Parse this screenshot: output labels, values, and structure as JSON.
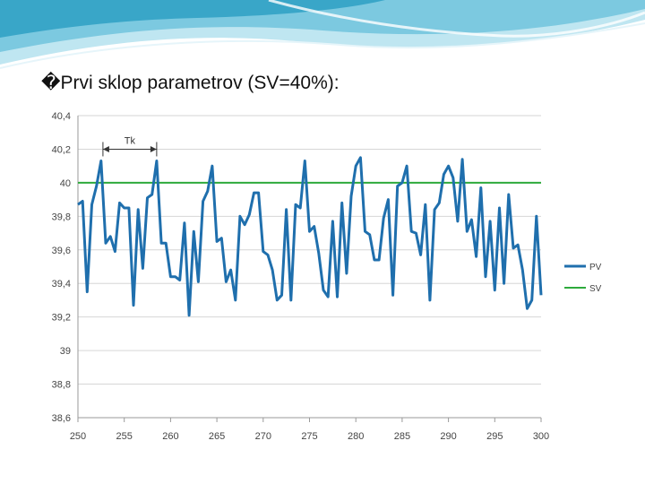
{
  "slide": {
    "title": "�Prvi sklop parametrov (SV=40%):"
  },
  "colors": {
    "pv": "#1f6fad",
    "sv": "#2eaa3c",
    "header_dark": "#3aa7c9",
    "header_light": "#a9dceb"
  },
  "chart_data": {
    "type": "line",
    "title": "",
    "xlabel": "",
    "ylabel": "",
    "xlim": [
      250,
      300
    ],
    "ylim": [
      38.6,
      40.4
    ],
    "x_ticks": [
      "250",
      "255",
      "260",
      "265",
      "270",
      "275",
      "280",
      "285",
      "290",
      "295",
      "300"
    ],
    "y_ticks": [
      "40,4",
      "40,2",
      "40",
      "39,8",
      "39,6",
      "39,4",
      "39,2",
      "39",
      "38,8",
      "38,6"
    ],
    "grid": true,
    "legend_position": "right",
    "annotation": {
      "label": "Tk",
      "from_x": 252.7,
      "to_x": 258.5,
      "y": 40.2
    },
    "series": [
      {
        "name": "PV",
        "color": "#1f6fad",
        "x": [
          250,
          250.5,
          251,
          251.5,
          252,
          252.5,
          253,
          253.5,
          254,
          254.5,
          255,
          255.5,
          256,
          256.5,
          257,
          257.5,
          258,
          258.5,
          259,
          259.5,
          260,
          260.5,
          261,
          261.5,
          262,
          262.5,
          263,
          263.5,
          264,
          264.5,
          265,
          265.5,
          266,
          266.5,
          267,
          267.5,
          268,
          268.5,
          269,
          269.5,
          270,
          270.5,
          271,
          271.5,
          272,
          272.5,
          273,
          273.5,
          274,
          274.5,
          275,
          275.5,
          276,
          276.5,
          277,
          277.5,
          278,
          278.5,
          279,
          279.5,
          280,
          280.5,
          281,
          281.5,
          282,
          282.5,
          283,
          283.5,
          284,
          284.5,
          285,
          285.5,
          286,
          286.5,
          287,
          287.5,
          288,
          288.5,
          289,
          289.5,
          290,
          290.5,
          291,
          291.5,
          292,
          292.5,
          293,
          293.5,
          294,
          294.5,
          295,
          295.5,
          296,
          296.5,
          297,
          297.5,
          298,
          298.5,
          299,
          299.5,
          300
        ],
        "y": [
          39.87,
          39.89,
          39.35,
          39.87,
          39.98,
          40.13,
          39.64,
          39.68,
          39.59,
          39.88,
          39.85,
          39.85,
          39.27,
          39.84,
          39.49,
          39.91,
          39.93,
          40.13,
          39.64,
          39.64,
          39.44,
          39.44,
          39.42,
          39.76,
          39.21,
          39.71,
          39.41,
          39.89,
          39.95,
          40.1,
          39.65,
          39.67,
          39.41,
          39.48,
          39.3,
          39.8,
          39.75,
          39.81,
          39.94,
          39.94,
          39.59,
          39.57,
          39.48,
          39.3,
          39.33,
          39.84,
          39.3,
          39.87,
          39.85,
          40.13,
          39.71,
          39.74,
          39.58,
          39.36,
          39.32,
          39.77,
          39.32,
          39.88,
          39.46,
          39.92,
          40.1,
          40.15,
          39.71,
          39.69,
          39.54,
          39.54,
          39.79,
          39.9,
          39.33,
          39.98,
          40.0,
          40.1,
          39.71,
          39.7,
          39.57,
          39.87,
          39.3,
          39.84,
          39.88,
          40.05,
          40.1,
          40.03,
          39.77,
          40.14,
          39.71,
          39.78,
          39.56,
          39.97,
          39.44,
          39.77,
          39.36,
          39.85,
          39.4,
          39.93,
          39.61,
          39.63,
          39.48,
          39.25,
          39.3,
          39.8,
          39.33
        ]
      },
      {
        "name": "SV",
        "color": "#2eaa3c",
        "x": [
          250,
          300
        ],
        "y": [
          40,
          40
        ]
      }
    ]
  }
}
